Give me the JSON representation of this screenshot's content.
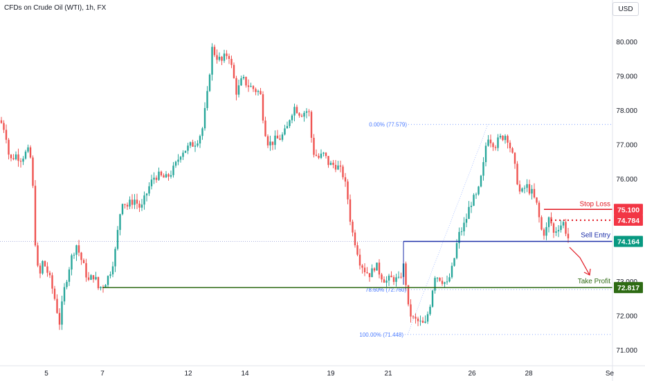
{
  "header": {
    "title": "CFDs on Crude Oil (WTI), 1h, FX",
    "currency": "USD"
  },
  "chart_data": {
    "type": "candlestick",
    "title": "CFDs on Crude Oil (WTI), 1h, FX",
    "ylim": [
      70.8,
      80.4
    ],
    "y_ticks": [
      "71.000",
      "72.000",
      "73.000",
      "75.000",
      "76.000",
      "77.000",
      "78.000",
      "79.000",
      "80.000"
    ],
    "x_ticks": [
      "5",
      "7",
      "12",
      "14",
      "19",
      "21",
      "26",
      "28",
      "Se"
    ],
    "up_color": "#26a69a",
    "down_color": "#ef5350",
    "price_path": [
      [
        0,
        77.7
      ],
      [
        8,
        77.4
      ],
      [
        14,
        76.5
      ],
      [
        22,
        76.7
      ],
      [
        30,
        76.6
      ],
      [
        40,
        76.8
      ],
      [
        46,
        76.5
      ],
      [
        50,
        74.4
      ],
      [
        56,
        73.0
      ],
      [
        62,
        73.6
      ],
      [
        70,
        73.2
      ],
      [
        78,
        72.6
      ],
      [
        86,
        71.8
      ],
      [
        94,
        72.9
      ],
      [
        102,
        73.6
      ],
      [
        110,
        74.1
      ],
      [
        118,
        73.6
      ],
      [
        128,
        73.0
      ],
      [
        136,
        73.2
      ],
      [
        142,
        72.8
      ],
      [
        150,
        72.9
      ],
      [
        158,
        73.2
      ],
      [
        166,
        73.8
      ],
      [
        176,
        75.4
      ],
      [
        184,
        75.2
      ],
      [
        194,
        75.4
      ],
      [
        204,
        75.1
      ],
      [
        214,
        75.7
      ],
      [
        224,
        76.1
      ],
      [
        240,
        76.0
      ],
      [
        252,
        76.3
      ],
      [
        262,
        76.8
      ],
      [
        272,
        76.9
      ],
      [
        284,
        77.1
      ],
      [
        292,
        77.4
      ],
      [
        300,
        78.5
      ],
      [
        306,
        79.8
      ],
      [
        312,
        79.6
      ],
      [
        320,
        79.4
      ],
      [
        330,
        79.7
      ],
      [
        336,
        79.1
      ],
      [
        342,
        78.5
      ],
      [
        350,
        78.9
      ],
      [
        360,
        78.7
      ],
      [
        368,
        78.6
      ],
      [
        376,
        78.5
      ],
      [
        382,
        77.5
      ],
      [
        388,
        77.0
      ],
      [
        396,
        77.1
      ],
      [
        406,
        77.2
      ],
      [
        414,
        77.4
      ],
      [
        420,
        77.9
      ],
      [
        426,
        78.1
      ],
      [
        434,
        77.9
      ],
      [
        446,
        78.0
      ],
      [
        452,
        76.8
      ],
      [
        460,
        76.6
      ],
      [
        468,
        76.7
      ],
      [
        476,
        76.4
      ],
      [
        486,
        76.4
      ],
      [
        496,
        76.1
      ],
      [
        502,
        75.5
      ],
      [
        508,
        74.5
      ],
      [
        514,
        74.1
      ],
      [
        520,
        73.6
      ],
      [
        528,
        73.3
      ],
      [
        536,
        73.2
      ],
      [
        542,
        73.5
      ],
      [
        550,
        73.2
      ],
      [
        558,
        73.0
      ],
      [
        568,
        73.1
      ],
      [
        576,
        73.0
      ],
      [
        584,
        73.5
      ],
      [
        590,
        72.2
      ],
      [
        596,
        71.9
      ],
      [
        606,
        71.8
      ],
      [
        614,
        71.7
      ],
      [
        622,
        72.4
      ],
      [
        628,
        73.2
      ],
      [
        636,
        73.1
      ],
      [
        646,
        72.9
      ],
      [
        654,
        73.4
      ],
      [
        662,
        74.3
      ],
      [
        672,
        74.7
      ],
      [
        680,
        75.3
      ],
      [
        690,
        75.5
      ],
      [
        698,
        76.3
      ],
      [
        704,
        77.3
      ],
      [
        710,
        77.1
      ],
      [
        716,
        77.0
      ],
      [
        724,
        77.2
      ],
      [
        732,
        77.3
      ],
      [
        740,
        76.7
      ],
      [
        746,
        76.1
      ],
      [
        752,
        75.5
      ],
      [
        760,
        75.8
      ],
      [
        768,
        75.6
      ],
      [
        776,
        75.2
      ],
      [
        782,
        74.5
      ],
      [
        788,
        74.4
      ],
      [
        794,
        74.9
      ],
      [
        800,
        74.4
      ],
      [
        806,
        74.6
      ],
      [
        814,
        74.7
      ],
      [
        822,
        74.2
      ]
    ],
    "levels": [
      {
        "name": "Stop Loss",
        "value": "75.100",
        "price": 75.1,
        "color": "#e0141e"
      },
      {
        "name": "",
        "value": "74.784",
        "price": 74.784,
        "color": "#e0141e"
      },
      {
        "name": "Sell Entry",
        "value": "74.164",
        "price": 74.164,
        "color": "#1b2ea8"
      },
      {
        "name": "Take Profit",
        "value": "72.817",
        "price": 72.817,
        "color": "#2e6b14"
      }
    ],
    "fibonacci": [
      {
        "label": "0.00% (77.579)",
        "price": 77.579
      },
      {
        "label": "78.60% (72.760)",
        "price": 72.76
      },
      {
        "label": "100.00% (71.448)",
        "price": 71.448
      }
    ]
  }
}
